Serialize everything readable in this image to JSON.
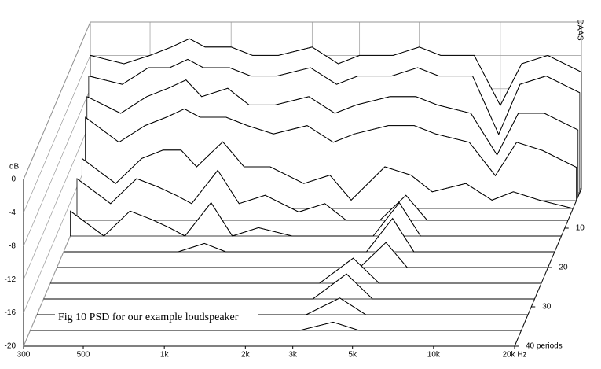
{
  "chart_data": {
    "type": "waterfall",
    "title": "Fig 10 PSD for our example loudspeaker",
    "brand": "DAAS",
    "y_label": "dB",
    "xscale": "log",
    "grid": true,
    "color": "#000000",
    "x": [
      300,
      400,
      500,
      600,
      700,
      800,
      1000,
      1200,
      1500,
      2000,
      2500,
      3000,
      4000,
      5000,
      6000,
      8000,
      10000,
      12000,
      15000,
      20000
    ],
    "xlim": [
      300,
      20000
    ],
    "xticks": [
      300,
      500,
      {
        "value": 1000,
        "label": "1k"
      },
      {
        "value": 2000,
        "label": "2k"
      },
      {
        "value": 3000,
        "label": "3k"
      },
      {
        "value": 5000,
        "label": "5k"
      },
      {
        "value": 10000,
        "label": "10k"
      },
      {
        "value": 20000,
        "label": "20k Hz"
      }
    ],
    "ylim": [
      -20,
      0
    ],
    "yticks": [
      0,
      -4,
      -8,
      -12,
      -16,
      -20
    ],
    "zlim": [
      0,
      40
    ],
    "zticks": [
      10,
      20,
      30,
      {
        "value": 40,
        "label": "40 periods"
      }
    ],
    "series": [
      {
        "periods": 0,
        "values": [
          -4,
          -5,
          -4,
          -3,
          -2,
          -3,
          -3,
          -4,
          -4,
          -3,
          -5,
          -4,
          -4,
          -3,
          -4,
          -4,
          -10,
          -5,
          -4,
          -6
        ]
      },
      {
        "periods": 1,
        "values": [
          -6,
          -7,
          -5,
          -5,
          -4,
          -5,
          -5,
          -6,
          -6,
          -5,
          -7,
          -6,
          -6,
          -5,
          -6,
          -6,
          -13,
          -7,
          -6,
          -8
        ]
      },
      {
        "periods": 2,
        "values": [
          -8,
          -10,
          -8,
          -7,
          -6,
          -8,
          -7,
          -9,
          -9,
          -8,
          -10,
          -9,
          -8,
          -8,
          -9,
          -10,
          -15,
          -10,
          -10,
          -12
        ]
      },
      {
        "periods": 3,
        "values": [
          -10,
          -13,
          -11,
          -10,
          -9,
          -10,
          -10,
          -11,
          -12,
          -11,
          -13,
          -12,
          -11,
          -11,
          -12,
          -13,
          -17,
          -13,
          -14,
          -16
        ]
      },
      {
        "periods": 5,
        "values": [
          -14,
          -17,
          -14,
          -13,
          -13,
          -15,
          -12,
          -15,
          -15,
          -17,
          -16,
          -19,
          -15,
          -16,
          -18,
          -17,
          -19,
          -18,
          -19,
          -20
        ]
      },
      {
        "periods": 8,
        "values": [
          -15,
          -18,
          -15,
          -16,
          -17,
          -18,
          -14,
          -18,
          -17,
          -19,
          -18,
          -20,
          -20,
          -17,
          -20,
          -20,
          -20,
          -20,
          -20,
          -20
        ]
      },
      {
        "periods": 12,
        "values": [
          -17,
          -20,
          -17,
          -18,
          -19,
          -20,
          -16,
          -20,
          -19,
          -20,
          -20,
          -20,
          -20,
          -16,
          -20,
          -20,
          -20,
          -20,
          -20,
          -20
        ]
      },
      {
        "periods": 16,
        "values": [
          -20,
          -20,
          -20,
          -20,
          -20,
          -20,
          -19,
          -20,
          -20,
          -20,
          -20,
          -20,
          -20,
          -16,
          -20,
          -20,
          -20,
          -20,
          -20,
          -20
        ]
      },
      {
        "periods": 20,
        "values": [
          -20,
          -20,
          -20,
          -20,
          -20,
          -20,
          -20,
          -20,
          -20,
          -20,
          -20,
          -20,
          -20,
          -17,
          -20,
          -20,
          -20,
          -20,
          -20,
          -20
        ]
      },
      {
        "periods": 24,
        "values": [
          -20,
          -20,
          -20,
          -20,
          -20,
          -20,
          -20,
          -20,
          -20,
          -20,
          -20,
          -20,
          -17,
          -20,
          -20,
          -20,
          -20,
          -20,
          -20,
          -20
        ]
      },
      {
        "periods": 28,
        "values": [
          -20,
          -20,
          -20,
          -20,
          -20,
          -20,
          -20,
          -20,
          -20,
          -20,
          -20,
          -20,
          -17,
          -20,
          -20,
          -20,
          -20,
          -20,
          -20,
          -20
        ]
      },
      {
        "periods": 32,
        "values": [
          -20,
          -20,
          -20,
          -20,
          -20,
          -20,
          -20,
          -20,
          -20,
          -20,
          -20,
          -20,
          -18,
          -20,
          -20,
          -20,
          -20,
          -20,
          -20,
          -20
        ]
      },
      {
        "periods": 36,
        "values": [
          -20,
          -20,
          -20,
          -20,
          -20,
          -20,
          -20,
          -20,
          -20,
          -20,
          -20,
          -20,
          -19,
          -20,
          -20,
          -20,
          -20,
          -20,
          -20,
          -20
        ]
      },
      {
        "periods": 40,
        "values": [
          -20,
          -20,
          -20,
          -20,
          -20,
          -20,
          -20,
          -20,
          -20,
          -20,
          -20,
          -20,
          -20,
          -20,
          -20,
          -20,
          -20,
          -20,
          -20,
          -20
        ]
      }
    ]
  }
}
